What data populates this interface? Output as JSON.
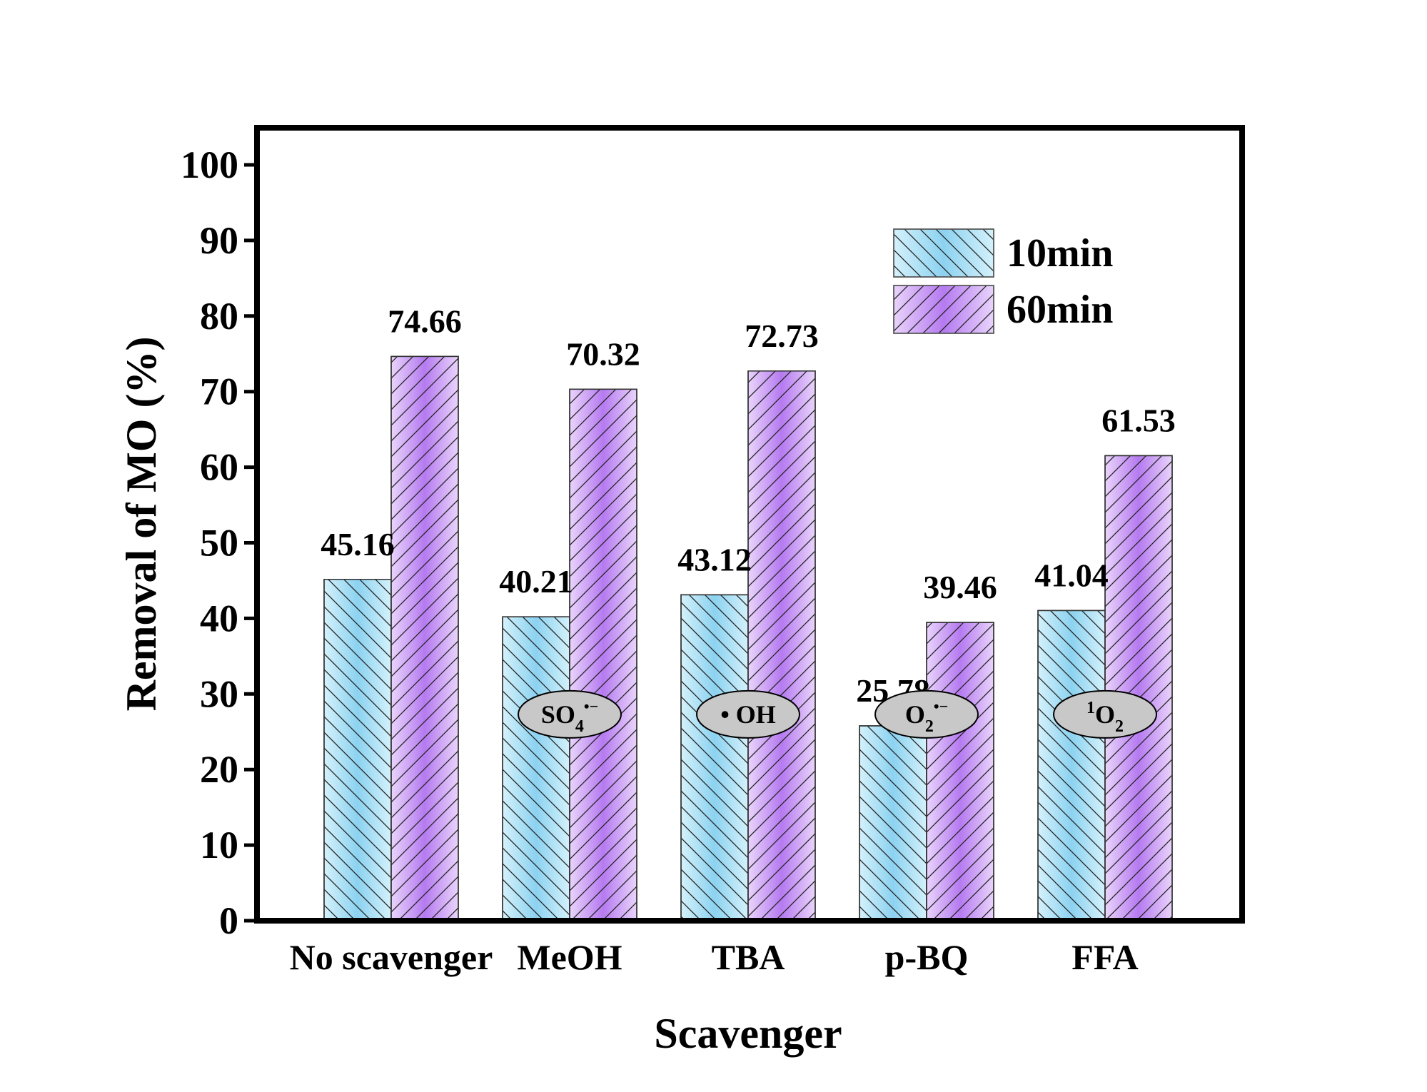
{
  "chart_data": {
    "type": "bar",
    "title": "",
    "xlabel": "Scavenger",
    "ylabel": "Removal of MO (%)",
    "ylim": [
      0,
      100
    ],
    "yticks": [
      0,
      10,
      20,
      30,
      40,
      50,
      60,
      70,
      80,
      90,
      100
    ],
    "grid": false,
    "legend_position": "top-right",
    "categories": [
      "No scavenger",
      "MeOH",
      "TBA",
      "p-BQ",
      "FFA"
    ],
    "series": [
      {
        "name": "10min",
        "values": [
          45.16,
          40.21,
          43.12,
          25.78,
          41.04
        ],
        "color_light": "#d4f1fb",
        "color_mid": "#8cd2f0"
      },
      {
        "name": "60min",
        "values": [
          74.66,
          70.32,
          72.73,
          39.46,
          61.53
        ],
        "color_light": "#e9d4fb",
        "color_mid": "#b57af0"
      }
    ],
    "data_labels": [
      [
        "45.16",
        "40.21",
        "43.12",
        "25.78",
        "41.04"
      ],
      [
        "74.66",
        "70.32",
        "72.73",
        "39.46",
        "61.53"
      ]
    ],
    "annotations": [
      {
        "category": "MeOH",
        "species": "SO",
        "sub": "4",
        "sup": "•−",
        "pre": ""
      },
      {
        "category": "TBA",
        "species": "OH",
        "sub": "",
        "sup": "",
        "pre": "•"
      },
      {
        "category": "p-BQ",
        "species": "O",
        "sub": "2",
        "sup": "•−",
        "pre": ""
      },
      {
        "category": "FFA",
        "species": "O",
        "sub": "2",
        "sup": "",
        "pre": "1"
      }
    ],
    "annotation_fill": "#c8c8c8"
  }
}
